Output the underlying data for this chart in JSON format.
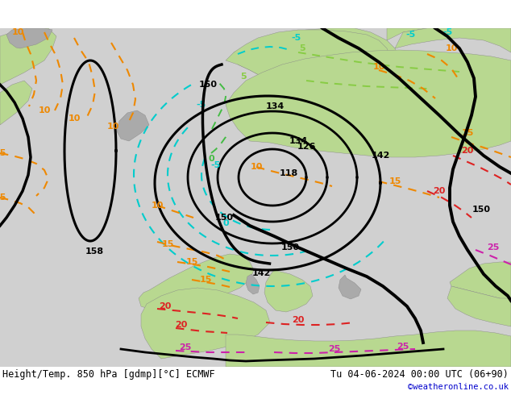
{
  "title_left": "Height/Temp. 850 hPa [gdmp][°C] ECMWF",
  "title_right": "Tu 04-06-2024 00:00 UTC (06+90)",
  "credit": "©weatheronline.co.uk",
  "bg_ocean": "#d0d0d0",
  "bg_land_green": "#b8d890",
  "bg_land_grey": "#aaaaaa",
  "c_height": "#000000",
  "c_neg5": "#00cccc",
  "c_0": "#44bb44",
  "c_5": "#88cc44",
  "c_10": "#ee8800",
  "c_15": "#ee8800",
  "c_20": "#dd2222",
  "c_25": "#cc22aa",
  "lbl_fs": 8,
  "title_fs": 8.5,
  "credit_fs": 7.5,
  "credit_color": "#0000cc"
}
